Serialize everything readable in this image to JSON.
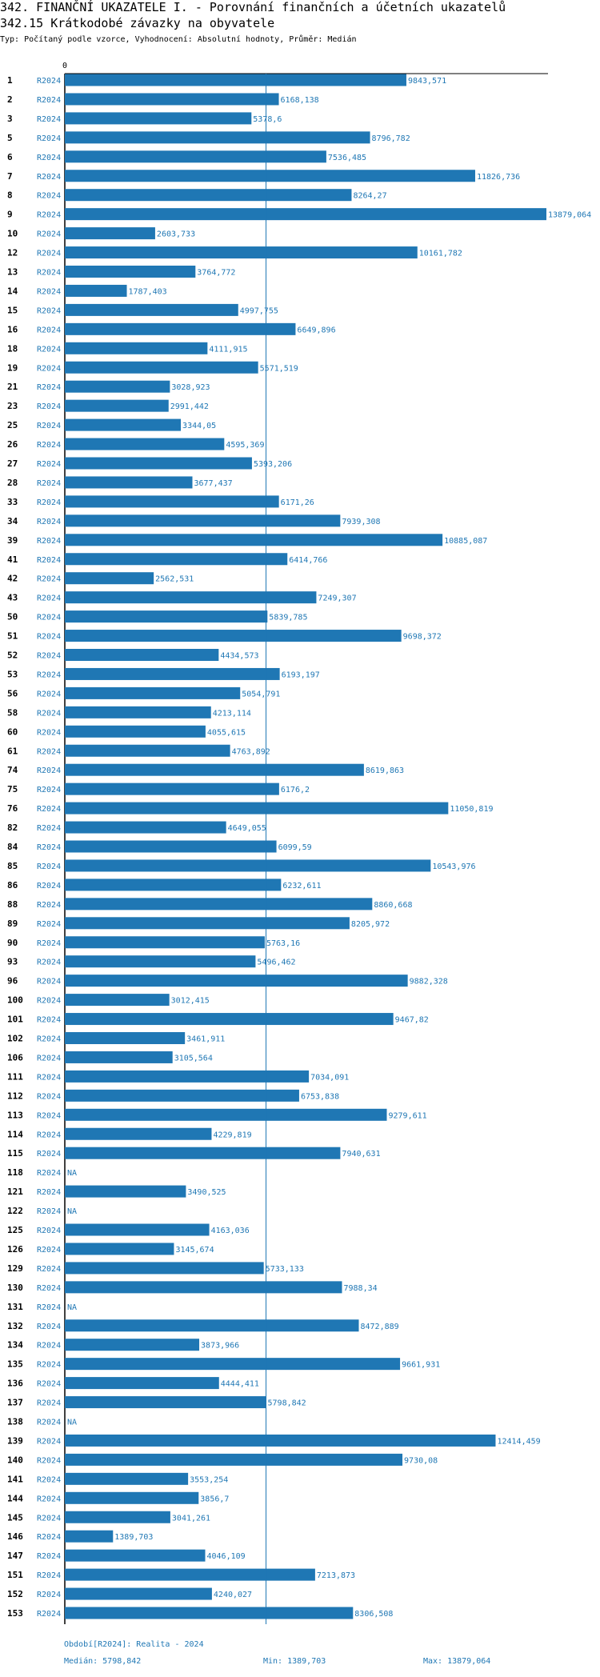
{
  "header": {
    "title": "342. FINANČNÍ UKAZATELE I. - Porovnání finančních a účetních ukazatelů",
    "subtitle": "342.15 Krátkodobé závazky na obyvatele",
    "typ": "Typ: Počítaný podle vzorce, Vyhodnocení: Absolutní hodnoty, Průměr: Medián"
  },
  "colors": {
    "bar": "#1f77b4",
    "label": "#1f77b4",
    "axis": "#000000",
    "median": "#1f77b4"
  },
  "chart_data": {
    "type": "bar",
    "orientation": "horizontal",
    "title": "342.15 Krátkodobé závazky na obyvatele",
    "period_label": "R2024",
    "x_tick": "0",
    "xlim": [
      0,
      13879.064
    ],
    "median": 5798.842,
    "rows": [
      {
        "id": "1",
        "label": "9843,571",
        "value": 9843.571
      },
      {
        "id": "2",
        "label": "6168,138",
        "value": 6168.138
      },
      {
        "id": "3",
        "label": "5378,6",
        "value": 5378.6
      },
      {
        "id": "5",
        "label": "8796,782",
        "value": 8796.782
      },
      {
        "id": "6",
        "label": "7536,485",
        "value": 7536.485
      },
      {
        "id": "7",
        "label": "11826,736",
        "value": 11826.736
      },
      {
        "id": "8",
        "label": "8264,27",
        "value": 8264.27
      },
      {
        "id": "9",
        "label": "13879,064",
        "value": 13879.064
      },
      {
        "id": "10",
        "label": "2603,733",
        "value": 2603.733
      },
      {
        "id": "12",
        "label": "10161,782",
        "value": 10161.782
      },
      {
        "id": "13",
        "label": "3764,772",
        "value": 3764.772
      },
      {
        "id": "14",
        "label": "1787,403",
        "value": 1787.403
      },
      {
        "id": "15",
        "label": "4997,755",
        "value": 4997.755
      },
      {
        "id": "16",
        "label": "6649,896",
        "value": 6649.896
      },
      {
        "id": "18",
        "label": "4111,915",
        "value": 4111.915
      },
      {
        "id": "19",
        "label": "5571,519",
        "value": 5571.519
      },
      {
        "id": "21",
        "label": "3028,923",
        "value": 3028.923
      },
      {
        "id": "23",
        "label": "2991,442",
        "value": 2991.442
      },
      {
        "id": "25",
        "label": "3344,05",
        "value": 3344.05
      },
      {
        "id": "26",
        "label": "4595,369",
        "value": 4595.369
      },
      {
        "id": "27",
        "label": "5393,206",
        "value": 5393.206
      },
      {
        "id": "28",
        "label": "3677,437",
        "value": 3677.437
      },
      {
        "id": "33",
        "label": "6171,26",
        "value": 6171.26
      },
      {
        "id": "34",
        "label": "7939,308",
        "value": 7939.308
      },
      {
        "id": "39",
        "label": "10885,087",
        "value": 10885.087
      },
      {
        "id": "41",
        "label": "6414,766",
        "value": 6414.766
      },
      {
        "id": "42",
        "label": "2562,531",
        "value": 2562.531
      },
      {
        "id": "43",
        "label": "7249,307",
        "value": 7249.307
      },
      {
        "id": "50",
        "label": "5839,785",
        "value": 5839.785
      },
      {
        "id": "51",
        "label": "9698,372",
        "value": 9698.372
      },
      {
        "id": "52",
        "label": "4434,573",
        "value": 4434.573
      },
      {
        "id": "53",
        "label": "6193,197",
        "value": 6193.197
      },
      {
        "id": "56",
        "label": "5054,791",
        "value": 5054.791
      },
      {
        "id": "58",
        "label": "4213,114",
        "value": 4213.114
      },
      {
        "id": "60",
        "label": "4055,615",
        "value": 4055.615
      },
      {
        "id": "61",
        "label": "4763,892",
        "value": 4763.892
      },
      {
        "id": "74",
        "label": "8619,863",
        "value": 8619.863
      },
      {
        "id": "75",
        "label": "6176,2",
        "value": 6176.2
      },
      {
        "id": "76",
        "label": "11050,819",
        "value": 11050.819
      },
      {
        "id": "82",
        "label": "4649,055",
        "value": 4649.055
      },
      {
        "id": "84",
        "label": "6099,59",
        "value": 6099.59
      },
      {
        "id": "85",
        "label": "10543,976",
        "value": 10543.976
      },
      {
        "id": "86",
        "label": "6232,611",
        "value": 6232.611
      },
      {
        "id": "88",
        "label": "8860,668",
        "value": 8860.668
      },
      {
        "id": "89",
        "label": "8205,972",
        "value": 8205.972
      },
      {
        "id": "90",
        "label": "5763,16",
        "value": 5763.16
      },
      {
        "id": "93",
        "label": "5496,462",
        "value": 5496.462
      },
      {
        "id": "96",
        "label": "9882,328",
        "value": 9882.328
      },
      {
        "id": "100",
        "label": "3012,415",
        "value": 3012.415
      },
      {
        "id": "101",
        "label": "9467,82",
        "value": 9467.82
      },
      {
        "id": "102",
        "label": "3461,911",
        "value": 3461.911
      },
      {
        "id": "106",
        "label": "3105,564",
        "value": 3105.564
      },
      {
        "id": "111",
        "label": "7034,091",
        "value": 7034.091
      },
      {
        "id": "112",
        "label": "6753,838",
        "value": 6753.838
      },
      {
        "id": "113",
        "label": "9279,611",
        "value": 9279.611
      },
      {
        "id": "114",
        "label": "4229,819",
        "value": 4229.819
      },
      {
        "id": "115",
        "label": "7940,631",
        "value": 7940.631
      },
      {
        "id": "118",
        "label": "NA",
        "value": null
      },
      {
        "id": "121",
        "label": "3490,525",
        "value": 3490.525
      },
      {
        "id": "122",
        "label": "NA",
        "value": null
      },
      {
        "id": "125",
        "label": "4163,036",
        "value": 4163.036
      },
      {
        "id": "126",
        "label": "3145,674",
        "value": 3145.674
      },
      {
        "id": "129",
        "label": "5733,133",
        "value": 5733.133
      },
      {
        "id": "130",
        "label": "7988,34",
        "value": 7988.34
      },
      {
        "id": "131",
        "label": "NA",
        "value": null
      },
      {
        "id": "132",
        "label": "8472,889",
        "value": 8472.889
      },
      {
        "id": "134",
        "label": "3873,966",
        "value": 3873.966
      },
      {
        "id": "135",
        "label": "9661,931",
        "value": 9661.931
      },
      {
        "id": "136",
        "label": "4444,411",
        "value": 4444.411
      },
      {
        "id": "137",
        "label": "5798,842",
        "value": 5798.842
      },
      {
        "id": "138",
        "label": "NA",
        "value": null
      },
      {
        "id": "139",
        "label": "12414,459",
        "value": 12414.459
      },
      {
        "id": "140",
        "label": "9730,08",
        "value": 9730.08
      },
      {
        "id": "141",
        "label": "3553,254",
        "value": 3553.254
      },
      {
        "id": "144",
        "label": "3856,7",
        "value": 3856.7
      },
      {
        "id": "145",
        "label": "3041,261",
        "value": 3041.261
      },
      {
        "id": "146",
        "label": "1389,703",
        "value": 1389.703
      },
      {
        "id": "147",
        "label": "4046,109",
        "value": 4046.109
      },
      {
        "id": "151",
        "label": "7213,873",
        "value": 7213.873
      },
      {
        "id": "152",
        "label": "4240,027",
        "value": 4240.027
      },
      {
        "id": "153",
        "label": "8306,508",
        "value": 8306.508
      }
    ]
  },
  "footer": {
    "period": "Období[R2024]: Realita - 2024",
    "median": "Medián: 5798,842",
    "min": "Min: 1389,703",
    "max": "Max: 13879,064"
  }
}
